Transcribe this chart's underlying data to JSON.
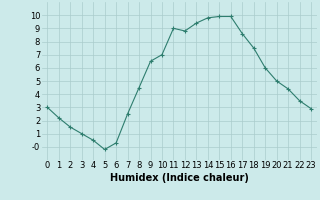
{
  "x": [
    0,
    1,
    2,
    3,
    4,
    5,
    6,
    7,
    8,
    9,
    10,
    11,
    12,
    13,
    14,
    15,
    16,
    17,
    18,
    19,
    20,
    21,
    22,
    23
  ],
  "y": [
    3,
    2.2,
    1.5,
    1.0,
    0.5,
    -0.2,
    0.3,
    2.5,
    4.5,
    6.5,
    7.0,
    9.0,
    8.8,
    9.4,
    9.8,
    9.9,
    9.9,
    8.6,
    7.5,
    6.0,
    5.0,
    4.4,
    3.5,
    2.9
  ],
  "line_color": "#2e7d6e",
  "marker": "+",
  "marker_size": 3,
  "marker_linewidth": 0.8,
  "bg_color": "#cceaea",
  "grid_color": "#aacccc",
  "xlabel": "Humidex (Indice chaleur)",
  "xlabel_fontsize": 7,
  "tick_fontsize": 6,
  "line_width": 0.8,
  "ylim": [
    -1,
    11
  ],
  "xlim": [
    -0.5,
    23.5
  ],
  "yticks": [
    0,
    1,
    2,
    3,
    4,
    5,
    6,
    7,
    8,
    9,
    10
  ],
  "ytick_labels": [
    "-0",
    "1",
    "2",
    "3",
    "4",
    "5",
    "6",
    "7",
    "8",
    "9",
    "10"
  ],
  "xticks": [
    0,
    1,
    2,
    3,
    4,
    5,
    6,
    7,
    8,
    9,
    10,
    11,
    12,
    13,
    14,
    15,
    16,
    17,
    18,
    19,
    20,
    21,
    22,
    23
  ],
  "xtick_labels": [
    "0",
    "1",
    "2",
    "3",
    "4",
    "5",
    "6",
    "7",
    "8",
    "9",
    "10",
    "11",
    "12",
    "13",
    "14",
    "15",
    "16",
    "17",
    "18",
    "19",
    "20",
    "21",
    "22",
    "23"
  ]
}
